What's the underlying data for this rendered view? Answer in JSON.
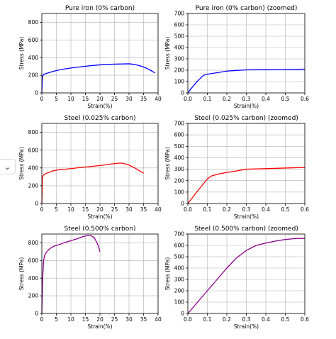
{
  "ui": {
    "collapse_icon": "chevron-down-icon",
    "collapse_glyph": "⌄"
  },
  "chart_data": [
    {
      "type": "line",
      "title": "Pure iron (0% carbon)",
      "xlabel": "Strain(%)",
      "ylabel": "Stress (MPa)",
      "xlim": [
        0,
        40
      ],
      "ylim": [
        0,
        900
      ],
      "xticks": [
        0,
        5,
        10,
        15,
        20,
        25,
        30,
        35,
        40
      ],
      "yticks": [
        0,
        200,
        400,
        600,
        800
      ],
      "grid": true,
      "series": [
        {
          "color": "#0000ff",
          "x": [
            0,
            0.2,
            0.5,
            1,
            2,
            4,
            6,
            8,
            10,
            12,
            15,
            18,
            20,
            22,
            25,
            28,
            30,
            32,
            34,
            36,
            38,
            39
          ],
          "y": [
            0,
            180,
            205,
            215,
            225,
            245,
            260,
            272,
            282,
            290,
            302,
            312,
            318,
            322,
            326,
            328,
            330,
            322,
            305,
            280,
            245,
            225
          ]
        }
      ]
    },
    {
      "type": "line",
      "title": "Pure iron (0% carbon) (zoomed)",
      "xlabel": "Strain(%)",
      "ylabel": "Stress (MPa)",
      "xlim": [
        0,
        0.6
      ],
      "ylim": [
        0,
        700
      ],
      "xticks": [
        0.0,
        0.1,
        0.2,
        0.3,
        0.4,
        0.5,
        0.6
      ],
      "yticks": [
        0,
        100,
        200,
        300,
        400,
        500,
        600,
        700
      ],
      "grid": true,
      "series": [
        {
          "color": "#0000ff",
          "x": [
            0,
            0.02,
            0.05,
            0.08,
            0.1,
            0.15,
            0.2,
            0.25,
            0.3,
            0.4,
            0.5,
            0.6
          ],
          "y": [
            0,
            45,
            105,
            155,
            165,
            178,
            192,
            198,
            203,
            205,
            207,
            209
          ]
        }
      ]
    },
    {
      "type": "line",
      "title": "Steel (0.025% carbon)",
      "xlabel": "Strain(%)",
      "ylabel": "Stress (MPa)",
      "xlim": [
        0,
        40
      ],
      "ylim": [
        0,
        900
      ],
      "xticks": [
        0,
        5,
        10,
        15,
        20,
        25,
        30,
        35,
        40
      ],
      "yticks": [
        0,
        200,
        400,
        600,
        800
      ],
      "grid": true,
      "series": [
        {
          "color": "#ff0000",
          "x": [
            0,
            0.2,
            0.5,
            1,
            2,
            4,
            6,
            8,
            10,
            12,
            15,
            18,
            20,
            22,
            24,
            26,
            27,
            28,
            30,
            32,
            34,
            35
          ],
          "y": [
            0,
            290,
            315,
            330,
            345,
            368,
            380,
            385,
            392,
            400,
            410,
            420,
            427,
            435,
            445,
            452,
            455,
            452,
            432,
            400,
            360,
            340
          ]
        }
      ]
    },
    {
      "type": "line",
      "title": "Steel (0.025% carbon) (zoomed)",
      "xlabel": "Strain(%)",
      "ylabel": "Stress (MPa)",
      "xlim": [
        0,
        0.6
      ],
      "ylim": [
        0,
        700
      ],
      "xticks": [
        0.0,
        0.1,
        0.2,
        0.3,
        0.4,
        0.5,
        0.6
      ],
      "yticks": [
        0,
        100,
        200,
        300,
        400,
        500,
        600,
        700
      ],
      "grid": true,
      "series": [
        {
          "color": "#ff0000",
          "x": [
            0,
            0.05,
            0.1,
            0.12,
            0.15,
            0.2,
            0.25,
            0.3,
            0.4,
            0.5,
            0.6
          ],
          "y": [
            0,
            110,
            215,
            240,
            255,
            272,
            285,
            300,
            305,
            310,
            315
          ]
        }
      ]
    },
    {
      "type": "line",
      "title": "Steel (0.500% carbon)",
      "xlabel": "Strain(%)",
      "ylabel": "Stress (MPa)",
      "xlim": [
        0,
        40
      ],
      "ylim": [
        0,
        900
      ],
      "xticks": [
        0,
        5,
        10,
        15,
        20,
        25,
        30,
        35,
        40
      ],
      "yticks": [
        0,
        200,
        400,
        600,
        800
      ],
      "grid": true,
      "series": [
        {
          "color": "#8b008b",
          "x": [
            0,
            0.3,
            0.6,
            1,
            1.5,
            2,
            3,
            4,
            6,
            8,
            10,
            12,
            14,
            16,
            17,
            18,
            19,
            19.5,
            20
          ],
          "y": [
            0,
            400,
            600,
            660,
            690,
            710,
            740,
            760,
            780,
            805,
            825,
            845,
            870,
            885,
            880,
            860,
            800,
            760,
            700
          ]
        }
      ]
    },
    {
      "type": "line",
      "title": "Steel (0.500% carbon) (zoomed)",
      "xlabel": "Strain(%)",
      "ylabel": "Stress (MPa)",
      "xlim": [
        0,
        0.6
      ],
      "ylim": [
        0,
        700
      ],
      "xticks": [
        0.0,
        0.1,
        0.2,
        0.3,
        0.4,
        0.5,
        0.6
      ],
      "yticks": [
        0,
        100,
        200,
        300,
        400,
        500,
        600,
        700
      ],
      "grid": true,
      "series": [
        {
          "color": "#8b008b",
          "x": [
            0,
            0.05,
            0.1,
            0.15,
            0.2,
            0.25,
            0.3,
            0.35,
            0.4,
            0.45,
            0.5,
            0.55,
            0.6
          ],
          "y": [
            0,
            100,
            200,
            300,
            400,
            490,
            555,
            600,
            620,
            638,
            652,
            660,
            662
          ]
        }
      ]
    }
  ]
}
